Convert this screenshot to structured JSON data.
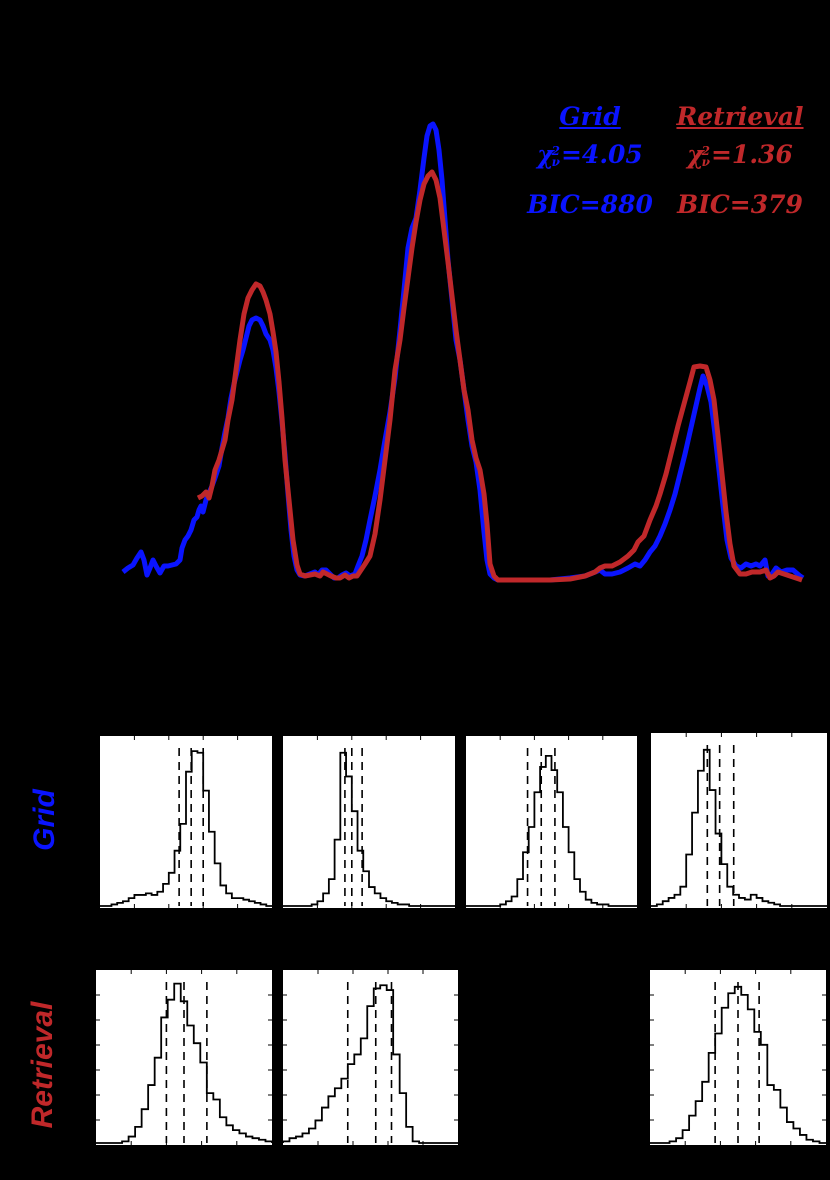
{
  "figure": {
    "background": "#000000",
    "colors": {
      "grid": "#0a14ff",
      "retrieval": "#c0282a",
      "histogram_line": "#000000",
      "panel_bg": "#ffffff"
    }
  },
  "legend": {
    "grid": {
      "title": "Grid",
      "chi_symbol": "χ",
      "chi_sup": "2",
      "chi_sub": "ν",
      "chi_value": "=4.05",
      "bic": "BIC=880"
    },
    "retrieval": {
      "title": "Retrieval",
      "chi_symbol": "χ",
      "chi_sup": "2",
      "chi_sub": "ν",
      "chi_value": "=1.36",
      "bic": "BIC=379"
    }
  },
  "row_labels": {
    "grid": "Grid",
    "retrieval": "Retrieval"
  },
  "chart_data": [
    {
      "type": "line",
      "title": "",
      "xlabel": "",
      "ylabel": "",
      "grid": false,
      "legend_position": "upper right",
      "note": "Normalized spectrum comparison; axes/ticks rendered black on black (not visible). Values in relative pixel units (0 = baseline, 1 = top of tallest peak).",
      "x": [
        0.0,
        0.03,
        0.05,
        0.07,
        0.09,
        0.11,
        0.13,
        0.15,
        0.17,
        0.19,
        0.21,
        0.23,
        0.25,
        0.27,
        0.29,
        0.31,
        0.33,
        0.35,
        0.37,
        0.39,
        0.41,
        0.43,
        0.45,
        0.47,
        0.49,
        0.51,
        0.53,
        0.55,
        0.57,
        0.59,
        0.61,
        0.63,
        0.65,
        0.67,
        0.69,
        0.71,
        0.73,
        0.75,
        0.77,
        0.79,
        0.81,
        0.83,
        0.85,
        0.87,
        0.89,
        0.91,
        0.93,
        0.95,
        0.97,
        1.0
      ],
      "series": [
        {
          "name": "Grid",
          "color": "#0a14ff",
          "values": [
            0.01,
            0.04,
            0.01,
            0.02,
            0.08,
            0.13,
            0.21,
            0.39,
            0.54,
            0.55,
            0.45,
            0.25,
            0.0,
            0.01,
            0.0,
            0.0,
            0.02,
            0.1,
            0.35,
            0.7,
            1.0,
            0.8,
            0.42,
            0.2,
            0.0,
            0.0,
            0.0,
            0.0,
            0.0,
            0.0,
            0.0,
            0.0,
            0.0,
            0.01,
            0.02,
            0.05,
            0.1,
            0.17,
            0.26,
            0.36,
            0.43,
            0.4,
            0.25,
            0.06,
            0.02,
            0.03,
            0.03,
            0.01,
            0.02,
            0.0
          ]
        },
        {
          "name": "Retrieval",
          "color": "#c0282a",
          "values": [
            null,
            null,
            null,
            null,
            null,
            null,
            0.18,
            0.33,
            0.52,
            0.62,
            0.52,
            0.3,
            0.0,
            0.01,
            0.0,
            0.0,
            0.01,
            0.05,
            0.25,
            0.6,
            0.89,
            0.75,
            0.42,
            0.2,
            0.0,
            0.0,
            0.0,
            0.0,
            0.0,
            0.0,
            0.0,
            0.0,
            0.01,
            0.03,
            0.04,
            0.08,
            0.15,
            0.24,
            0.34,
            0.44,
            0.47,
            0.42,
            0.24,
            0.05,
            0.02,
            0.02,
            0.01,
            0.01,
            0.01,
            0.0
          ]
        }
      ],
      "annotations": [
        "Grid: χ²_ν=4.05, BIC=880",
        "Retrieval: χ²_ν=1.36, BIC=379"
      ]
    },
    {
      "type": "histogram",
      "row": "Grid",
      "panels": [
        {
          "index": 1,
          "bins": [
            0,
            0,
            0.01,
            0.02,
            0.03,
            0.05,
            0.07,
            0.07,
            0.08,
            0.07,
            0.09,
            0.14,
            0.21,
            0.35,
            0.52,
            0.85,
            0.98,
            0.97,
            0.73,
            0.47,
            0.27,
            0.13,
            0.08,
            0.05,
            0.05,
            0.04,
            0.03,
            0.02,
            0.01,
            0
          ],
          "dashed_x": [
            0.46,
            0.53,
            0.6
          ]
        },
        {
          "index": 2,
          "bins": [
            0,
            0,
            0,
            0,
            0,
            0.01,
            0.03,
            0.08,
            0.17,
            0.42,
            0.97,
            0.82,
            0.6,
            0.35,
            0.22,
            0.12,
            0.08,
            0.05,
            0.03,
            0.02,
            0.01,
            0.01,
            0,
            0,
            0,
            0,
            0,
            0,
            0,
            0
          ],
          "dashed_x": [
            0.36,
            0.4,
            0.46
          ]
        },
        {
          "index": 3,
          "bins": [
            0,
            0,
            0,
            0,
            0,
            0,
            0.01,
            0.03,
            0.06,
            0.17,
            0.34,
            0.5,
            0.72,
            0.88,
            0.95,
            0.86,
            0.72,
            0.5,
            0.34,
            0.17,
            0.09,
            0.04,
            0.02,
            0.01,
            0.01,
            0,
            0,
            0,
            0,
            0
          ],
          "dashed_x": [
            0.36,
            0.44,
            0.52
          ]
        },
        {
          "index": 4,
          "bins": [
            0,
            0.01,
            0.03,
            0.05,
            0.07,
            0.12,
            0.32,
            0.58,
            0.84,
            0.97,
            0.72,
            0.45,
            0.26,
            0.12,
            0.07,
            0.05,
            0.04,
            0.07,
            0.05,
            0.03,
            0.02,
            0.01,
            0,
            0,
            0,
            0,
            0,
            0,
            0,
            0
          ],
          "dashed_x": [
            0.32,
            0.39,
            0.47
          ]
        }
      ]
    },
    {
      "type": "histogram",
      "row": "Retrieval",
      "panels": [
        {
          "index": 1,
          "bins": [
            0,
            0,
            0,
            0,
            0.01,
            0.04,
            0.1,
            0.21,
            0.36,
            0.53,
            0.78,
            0.89,
            0.99,
            0.88,
            0.73,
            0.62,
            0.5,
            0.31,
            0.27,
            0.16,
            0.11,
            0.08,
            0.06,
            0.04,
            0.03,
            0.02,
            0.01
          ],
          "dashed_x": [
            0.4,
            0.5,
            0.63
          ]
        },
        {
          "index": 2,
          "bins": [
            0.01,
            0.03,
            0.04,
            0.06,
            0.09,
            0.14,
            0.22,
            0.29,
            0.34,
            0.4,
            0.49,
            0.55,
            0.65,
            0.85,
            0.96,
            0.98,
            0.95,
            0.55,
            0.31,
            0.1,
            0.01,
            0,
            0,
            0,
            0,
            0,
            0
          ],
          "dashed_x": [
            0.37,
            0.53,
            0.62
          ]
        },
        {
          "index": 3,
          "missing": true
        },
        {
          "index": 4,
          "bins": [
            0,
            0,
            0,
            0.01,
            0.03,
            0.08,
            0.17,
            0.26,
            0.38,
            0.56,
            0.68,
            0.84,
            0.93,
            0.97,
            0.92,
            0.83,
            0.69,
            0.61,
            0.36,
            0.33,
            0.22,
            0.13,
            0.09,
            0.05,
            0.02,
            0.01,
            0
          ],
          "dashed_x": [
            0.37,
            0.5,
            0.62
          ]
        }
      ]
    }
  ]
}
